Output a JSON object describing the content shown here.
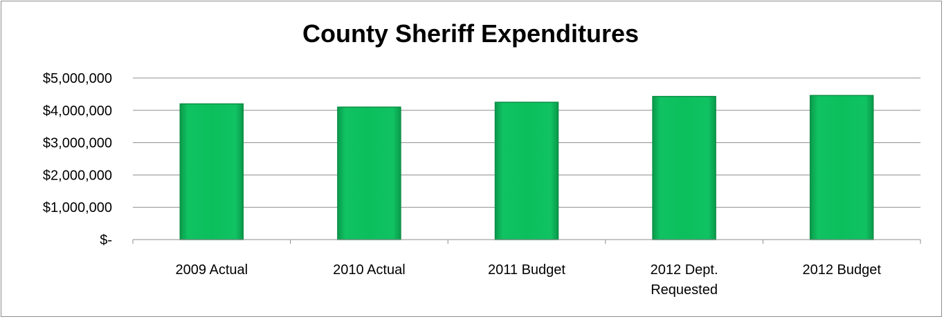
{
  "chart_data": {
    "type": "bar",
    "title": "County Sheriff Expenditures",
    "xlabel": "",
    "ylabel": "",
    "categories": [
      [
        "2009 Actual"
      ],
      [
        "2010 Actual"
      ],
      [
        "2011 Budget"
      ],
      [
        "2012 Dept.",
        "Requested"
      ],
      [
        "2012 Budget"
      ]
    ],
    "values": [
      4200000,
      4100000,
      4250000,
      4430000,
      4460000
    ],
    "ylim": [
      0,
      5000000
    ],
    "yticks": [
      0,
      1000000,
      2000000,
      3000000,
      4000000,
      5000000
    ],
    "ytick_labels": [
      "$-",
      "$1,000,000",
      "$2,000,000",
      "$3,000,000",
      "$4,000,000",
      "$5,000,000"
    ],
    "grid": true,
    "legend": "none",
    "colors": {
      "bar_fill": "#0dbd5c",
      "bar_edge": "#0a8f45",
      "gridline": "#8c8c8c",
      "axis": "#8c8c8c"
    }
  }
}
